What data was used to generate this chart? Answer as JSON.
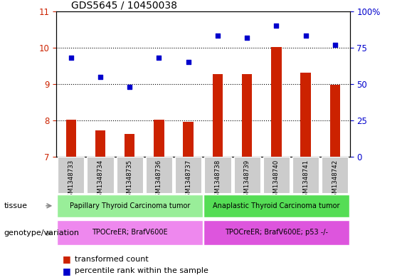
{
  "title": "GDS5645 / 10450038",
  "samples": [
    "GSM1348733",
    "GSM1348734",
    "GSM1348735",
    "GSM1348736",
    "GSM1348737",
    "GSM1348738",
    "GSM1348739",
    "GSM1348740",
    "GSM1348741",
    "GSM1348742"
  ],
  "bar_values": [
    8.02,
    7.73,
    7.62,
    8.02,
    7.97,
    9.27,
    9.27,
    10.02,
    9.32,
    8.97
  ],
  "dot_percentiles": [
    68,
    55,
    48,
    68,
    65,
    83,
    82,
    90,
    83,
    77
  ],
  "ylim_left": [
    7,
    11
  ],
  "ylim_right": [
    0,
    100
  ],
  "yticks_left": [
    7,
    8,
    9,
    10,
    11
  ],
  "yticks_right": [
    0,
    25,
    50,
    75,
    100
  ],
  "bar_color": "#cc2200",
  "dot_color": "#0000cc",
  "tissue_group1_label": "Papillary Thyroid Carcinoma tumor",
  "tissue_group2_label": "Anaplastic Thyroid Carcinoma tumor",
  "tissue_group1_color": "#99ee99",
  "tissue_group2_color": "#55dd55",
  "genotype_group1_label": "TPOCreER; BrafV600E",
  "genotype_group2_label": "TPOCreER; BrafV600E; p53 -/-",
  "genotype_group1_color": "#ee88ee",
  "genotype_group2_color": "#dd55dd",
  "ylabel_left_color": "#cc2200",
  "ylabel_right_color": "#0000cc",
  "legend_bar_label": "transformed count",
  "legend_dot_label": "percentile rank within the sample",
  "tick_bg_color": "#cccccc",
  "split_index": 5
}
